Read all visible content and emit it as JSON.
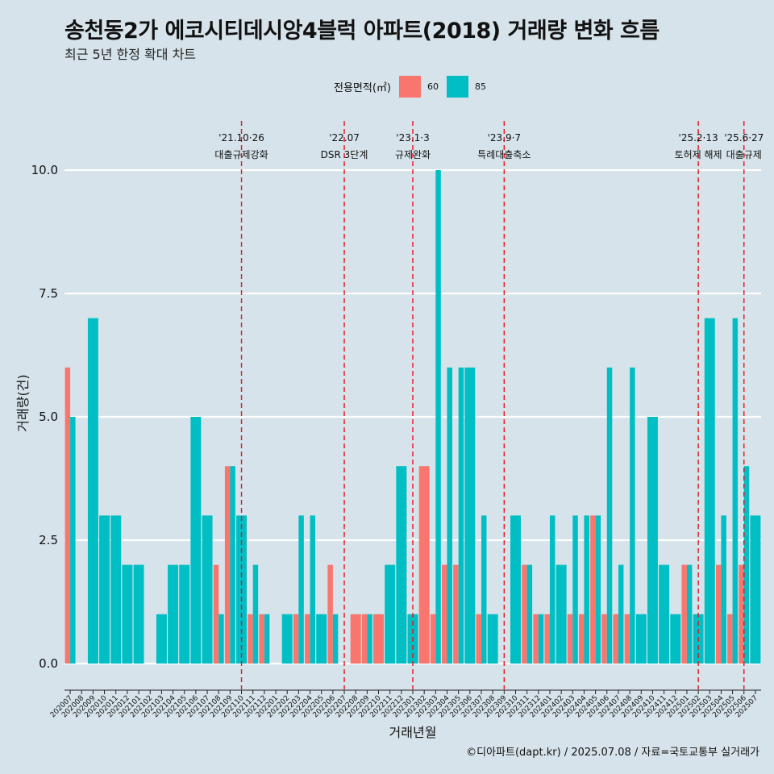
{
  "header": {
    "title": "송천동2가 에코시티데시앙4블럭 아파트(2018) 거래량 변화 흐름",
    "subtitle": "최근 5년 한정 확대 차트"
  },
  "legend": {
    "title": "전용면적(㎡)",
    "items": [
      {
        "label": "60",
        "color": "#f8766d"
      },
      {
        "label": "85",
        "color": "#00bfc4"
      }
    ]
  },
  "caption": "©디아파트(dapt.kr) / 2025.07.08 / 자료=국토교통부 실거래가",
  "chart_data": {
    "type": "bar",
    "xlabel": "거래년월",
    "ylabel": "거래량(건)",
    "ylim": [
      -0.5,
      11
    ],
    "yticks": [
      0.0,
      2.5,
      5.0,
      7.5,
      10.0
    ],
    "ytick_labels": [
      "0.0",
      "2.5",
      "5.0",
      "7.5",
      "10.0"
    ],
    "grid": true,
    "legend_position": "top",
    "categories": [
      "202007",
      "202008",
      "202009",
      "202010",
      "202011",
      "202012",
      "202101",
      "202102",
      "202103",
      "202104",
      "202105",
      "202106",
      "202107",
      "202108",
      "202109",
      "202110",
      "202111",
      "202112",
      "202201",
      "202202",
      "202203",
      "202204",
      "202205",
      "202206",
      "202207",
      "202208",
      "202209",
      "202210",
      "202211",
      "202212",
      "202301",
      "202302",
      "202303",
      "202304",
      "202305",
      "202306",
      "202307",
      "202308",
      "202309",
      "202310",
      "202311",
      "202312",
      "202401",
      "202402",
      "202403",
      "202404",
      "202405",
      "202406",
      "202407",
      "202408",
      "202409",
      "202410",
      "202411",
      "202412",
      "202501",
      "202502",
      "202503",
      "202504",
      "202505",
      "202506",
      "202507"
    ],
    "series": [
      {
        "name": "60",
        "color": "#f8766d",
        "values": [
          6,
          0,
          0,
          0,
          0,
          0,
          0,
          0,
          0,
          0,
          0,
          0,
          0,
          2,
          4,
          0,
          1,
          1,
          0,
          0,
          1,
          1,
          0,
          2,
          0,
          1,
          1,
          1,
          0,
          0,
          0,
          4,
          1,
          2,
          2,
          0,
          1,
          0,
          0,
          0,
          2,
          1,
          1,
          0,
          1,
          1,
          3,
          1,
          1,
          1,
          0,
          0,
          0,
          0,
          2,
          0,
          0,
          2,
          1,
          2,
          0
        ]
      },
      {
        "name": "85",
        "color": "#00bfc4",
        "values": [
          5,
          0,
          7,
          3,
          3,
          2,
          2,
          0,
          1,
          2,
          2,
          5,
          3,
          1,
          4,
          3,
          2,
          1,
          0,
          1,
          3,
          3,
          1,
          1,
          0,
          0,
          1,
          0,
          2,
          4,
          1,
          0,
          10,
          6,
          6,
          6,
          3,
          1,
          0,
          3,
          2,
          1,
          3,
          2,
          3,
          3,
          3,
          6,
          2,
          6,
          1,
          5,
          2,
          1,
          2,
          1,
          7,
          3,
          7,
          4,
          3
        ]
      }
    ],
    "events": [
      {
        "date": "'21.10·26",
        "label": "대출규제강화",
        "after": "202110"
      },
      {
        "date": "'22.07",
        "label": "DSR 3단계",
        "after": "202207"
      },
      {
        "date": "'23.1·3",
        "label": "규제완화",
        "after": "202301"
      },
      {
        "date": "'23.9·7",
        "label": "특례대출축소",
        "after": "202309"
      },
      {
        "date": "'25.2·13",
        "label": "토허제 해제",
        "after": "202502"
      },
      {
        "date": "'25.6·27",
        "label": "대출규제",
        "after": "202506"
      }
    ]
  }
}
